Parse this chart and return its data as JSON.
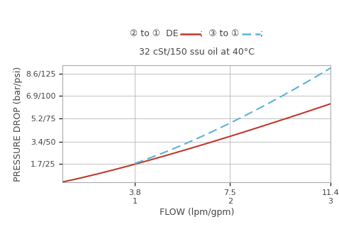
{
  "title_line2": "32 cSt/150 ssu oil at 40°C",
  "xlabel": "FLOW (lpm/gpm)",
  "ylabel": "PRESSURE DROP (bar/psi)",
  "ytick_labels": [
    "1.7/25",
    "3.4/50",
    "5.2/75",
    "6.9/100",
    "8.6/125"
  ],
  "ytick_values": [
    1.7,
    3.4,
    5.2,
    6.9,
    8.6
  ],
  "xtick_labels_top": [
    "3.8",
    "7.5",
    "11.4"
  ],
  "xtick_labels_bot": [
    "1",
    "2",
    "3"
  ],
  "xtick_values": [
    3.8,
    7.5,
    11.4
  ],
  "xlim": [
    1.0,
    11.4
  ],
  "ylim": [
    0.3,
    9.2
  ],
  "red_x": [
    1.0,
    3.8,
    7.5,
    11.4
  ],
  "red_y": [
    0.35,
    1.7,
    3.4,
    6.9
  ],
  "blue_x": [
    3.8,
    7.5,
    11.4
  ],
  "blue_y": [
    1.7,
    5.2,
    8.6
  ],
  "red_color": "#c0392b",
  "blue_color": "#5ab4d6",
  "bg_color": "#ffffff",
  "grid_color": "#aaaaaa",
  "title_fontsize": 9,
  "axis_label_fontsize": 9,
  "tick_fontsize": 8
}
